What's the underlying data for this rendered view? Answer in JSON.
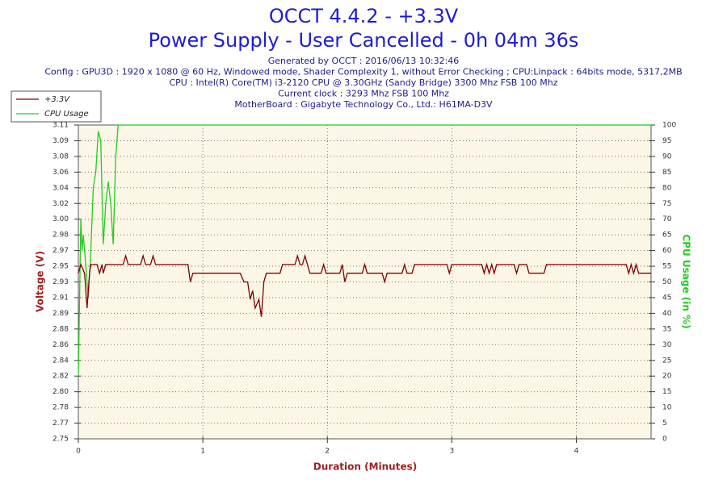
{
  "chart_data": {
    "type": "line",
    "title": "OCCT 4.4.2 - +3.3V",
    "subtitle": "Power Supply - User Cancelled - 0h 04m 36s",
    "info": [
      "Generated by OCCT : 2016/06/13 10:32:46",
      "Config : GPU3D : 1920 x 1080 @ 60 Hz, Windowed mode, Shader Complexity 1, without Error Checking ; CPU:Linpack : 64bits mode, 5317,2MB",
      "CPU : Intel(R) Core(TM) i3-2120 CPU @ 3.30GHz (Sandy Bridge) 3300 Mhz FSB 100 Mhz",
      "Current clock : 3293 Mhz FSB 100 Mhz",
      "MotherBoard : Gigabyte Technology Co., Ltd.: H61MA-D3V"
    ],
    "xlabel": "Duration (Minutes)",
    "ylabel": "Voltage (V)",
    "y2label": "CPU Usage (in %)",
    "xlim": [
      0,
      4.6
    ],
    "xticks": [
      0,
      1,
      2,
      3,
      4
    ],
    "ylim": [
      2.75,
      3.11
    ],
    "yticks": [
      {
        "value": 2.75,
        "label": "2.75"
      },
      {
        "value": 2.768,
        "label": "2.77"
      },
      {
        "value": 2.786,
        "label": "2.78"
      },
      {
        "value": 2.804,
        "label": "2.80"
      },
      {
        "value": 2.822,
        "label": "2.82"
      },
      {
        "value": 2.84,
        "label": "2.84"
      },
      {
        "value": 2.858,
        "label": "2.86"
      },
      {
        "value": 2.876,
        "label": "2.88"
      },
      {
        "value": 2.894,
        "label": "2.89"
      },
      {
        "value": 2.912,
        "label": "2.91"
      },
      {
        "value": 2.93,
        "label": "2.93"
      },
      {
        "value": 2.948,
        "label": "2.95"
      },
      {
        "value": 2.966,
        "label": "2.97"
      },
      {
        "value": 2.984,
        "label": "2.98"
      },
      {
        "value": 3.002,
        "label": "3.00"
      },
      {
        "value": 3.02,
        "label": "3.02"
      },
      {
        "value": 3.038,
        "label": "3.04"
      },
      {
        "value": 3.056,
        "label": "3.06"
      },
      {
        "value": 3.074,
        "label": "3.08"
      },
      {
        "value": 3.092,
        "label": "3.09"
      },
      {
        "value": 3.11,
        "label": "3.11"
      }
    ],
    "y2lim": [
      0,
      100
    ],
    "y2ticks": [
      0,
      5,
      10,
      15,
      20,
      25,
      30,
      35,
      40,
      45,
      50,
      55,
      60,
      65,
      70,
      75,
      80,
      85,
      90,
      95,
      100
    ],
    "grid": true,
    "legend": "upper left",
    "series": [
      {
        "name": "+3.3V",
        "color": "#800000",
        "x": [
          0,
          0.02,
          0.05,
          0.07,
          0.09,
          0.1,
          0.13,
          0.15,
          0.17,
          0.19,
          0.2,
          0.22,
          0.24,
          0.26,
          0.3,
          0.36,
          0.38,
          0.4,
          0.5,
          0.52,
          0.54,
          0.58,
          0.6,
          0.62,
          0.88,
          0.9,
          0.92,
          1.3,
          1.33,
          1.36,
          1.38,
          1.4,
          1.42,
          1.45,
          1.47,
          1.49,
          1.51,
          1.62,
          1.64,
          1.74,
          1.76,
          1.78,
          1.8,
          1.82,
          1.84,
          1.86,
          1.95,
          1.97,
          1.99,
          2.1,
          2.12,
          2.14,
          2.16,
          2.28,
          2.3,
          2.32,
          2.44,
          2.46,
          2.48,
          2.6,
          2.62,
          2.64,
          2.68,
          2.7,
          2.96,
          2.98,
          3.0,
          3.24,
          3.26,
          3.28,
          3.3,
          3.32,
          3.34,
          3.36,
          3.5,
          3.52,
          3.54,
          3.6,
          3.62,
          3.74,
          3.76,
          4.4,
          4.42,
          4.44,
          4.46,
          4.48,
          4.5,
          4.6
        ],
        "values": [
          2.94,
          2.95,
          2.94,
          2.9,
          2.94,
          2.95,
          2.95,
          2.95,
          2.94,
          2.95,
          2.94,
          2.95,
          2.95,
          2.95,
          2.95,
          2.95,
          2.96,
          2.95,
          2.95,
          2.96,
          2.95,
          2.95,
          2.96,
          2.95,
          2.95,
          2.93,
          2.94,
          2.94,
          2.93,
          2.93,
          2.91,
          2.92,
          2.9,
          2.91,
          2.89,
          2.93,
          2.94,
          2.94,
          2.95,
          2.95,
          2.96,
          2.95,
          2.95,
          2.96,
          2.95,
          2.94,
          2.94,
          2.95,
          2.94,
          2.94,
          2.95,
          2.93,
          2.94,
          2.94,
          2.95,
          2.94,
          2.94,
          2.93,
          2.94,
          2.94,
          2.95,
          2.94,
          2.94,
          2.95,
          2.95,
          2.94,
          2.95,
          2.95,
          2.94,
          2.95,
          2.94,
          2.95,
          2.94,
          2.95,
          2.95,
          2.94,
          2.95,
          2.95,
          2.94,
          2.94,
          2.95,
          2.95,
          2.94,
          2.95,
          2.94,
          2.95,
          2.94,
          2.94
        ]
      },
      {
        "name": "CPU Usage",
        "color": "#22cc22",
        "axis": "y2",
        "x": [
          0,
          0.01,
          0.02,
          0.03,
          0.04,
          0.06,
          0.08,
          0.1,
          0.12,
          0.14,
          0.16,
          0.18,
          0.2,
          0.22,
          0.24,
          0.26,
          0.28,
          0.3,
          0.32,
          4.6
        ],
        "values": [
          20,
          45,
          70,
          60,
          65,
          55,
          45,
          60,
          80,
          85,
          98,
          95,
          62,
          75,
          82,
          75,
          62,
          90,
          100,
          100
        ]
      }
    ]
  }
}
